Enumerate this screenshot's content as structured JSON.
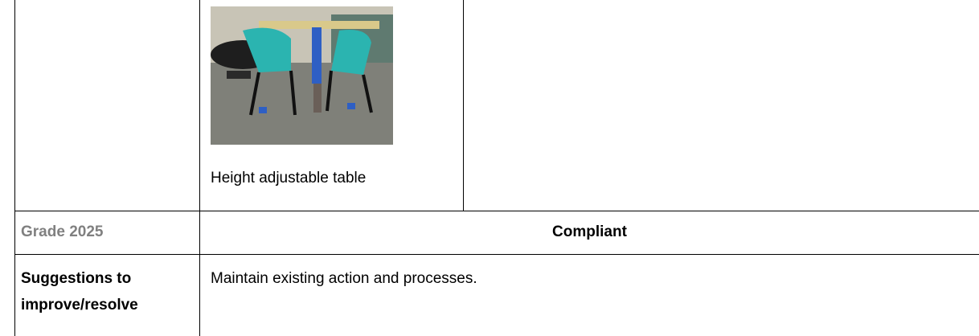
{
  "table": {
    "rows": [
      [
        "Height adjustable table"
      ],
      [
        "Grade 2025",
        "Compliant"
      ],
      [
        [
          "Suggestions to",
          "improve/resolve"
        ],
        "Maintain existing action and processes."
      ]
    ]
  }
}
